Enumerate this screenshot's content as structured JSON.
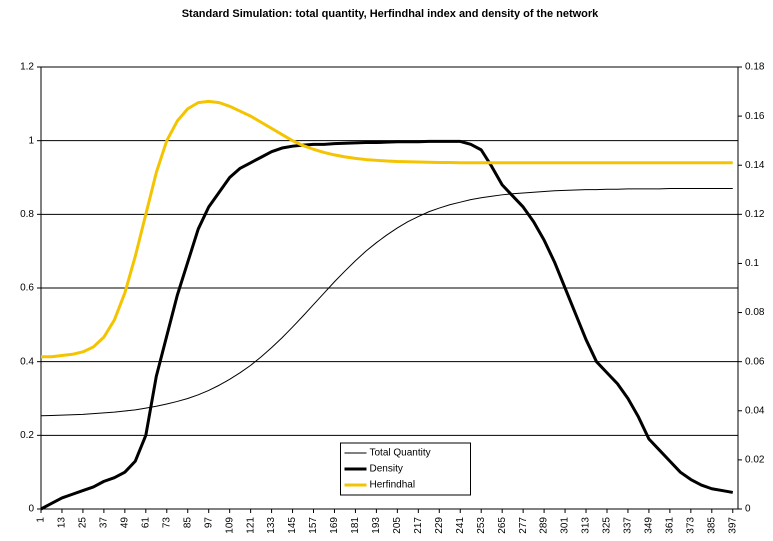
{
  "chart_data": {
    "type": "line",
    "title": "Standard Simulation: total quantity, Herfindhal  index and density of the network",
    "x": [
      1,
      7,
      13,
      19,
      25,
      31,
      37,
      43,
      49,
      55,
      61,
      67,
      73,
      79,
      85,
      91,
      97,
      103,
      109,
      115,
      121,
      127,
      133,
      139,
      145,
      151,
      157,
      163,
      169,
      175,
      181,
      187,
      193,
      199,
      205,
      211,
      217,
      223,
      229,
      235,
      241,
      247,
      253,
      259,
      265,
      271,
      277,
      283,
      289,
      295,
      301,
      307,
      313,
      319,
      325,
      331,
      337,
      343,
      349,
      355,
      361,
      367,
      373,
      379,
      385,
      391,
      397
    ],
    "xlim": [
      1,
      400
    ],
    "xticks": [
      1,
      13,
      25,
      37,
      49,
      61,
      73,
      85,
      97,
      109,
      121,
      133,
      145,
      157,
      169,
      181,
      193,
      205,
      217,
      229,
      241,
      253,
      265,
      277,
      289,
      301,
      313,
      325,
      337,
      349,
      361,
      373,
      385,
      397
    ],
    "ylim": [
      0,
      1.2
    ],
    "yticks": [
      0,
      0.2,
      0.4,
      0.6,
      0.8,
      1,
      1.2
    ],
    "y2lim": [
      0,
      0.18
    ],
    "y2ticks": [
      0,
      0.02,
      0.04,
      0.06,
      0.08,
      0.1,
      0.12,
      0.14,
      0.16,
      0.18
    ],
    "grid": true,
    "legend": "lower center",
    "series": [
      {
        "name": "Total Quantity",
        "color": "#000000",
        "line_width": 1,
        "values": [
          0.253,
          0.254,
          0.255,
          0.256,
          0.257,
          0.259,
          0.261,
          0.263,
          0.266,
          0.269,
          0.274,
          0.279,
          0.285,
          0.292,
          0.3,
          0.31,
          0.322,
          0.336,
          0.352,
          0.37,
          0.39,
          0.413,
          0.438,
          0.465,
          0.494,
          0.524,
          0.555,
          0.586,
          0.617,
          0.646,
          0.674,
          0.7,
          0.723,
          0.744,
          0.763,
          0.78,
          0.794,
          0.807,
          0.817,
          0.826,
          0.833,
          0.84,
          0.845,
          0.849,
          0.853,
          0.856,
          0.858,
          0.86,
          0.862,
          0.864,
          0.865,
          0.866,
          0.867,
          0.867,
          0.868,
          0.868,
          0.869,
          0.869,
          0.869,
          0.869,
          0.87,
          0.87,
          0.87,
          0.87,
          0.87,
          0.87,
          0.87
        ]
      },
      {
        "name": "Density",
        "color": "#000000",
        "line_width": 3,
        "values": [
          0,
          0.015,
          0.03,
          0.04,
          0.05,
          0.06,
          0.075,
          0.085,
          0.1,
          0.13,
          0.2,
          0.36,
          0.47,
          0.58,
          0.67,
          0.76,
          0.82,
          0.86,
          0.9,
          0.925,
          0.94,
          0.955,
          0.97,
          0.98,
          0.985,
          0.988,
          0.99,
          0.99,
          0.992,
          0.993,
          0.994,
          0.995,
          0.995,
          0.996,
          0.997,
          0.997,
          0.997,
          0.998,
          0.998,
          0.998,
          0.998,
          0.99,
          0.975,
          0.93,
          0.88,
          0.85,
          0.82,
          0.78,
          0.73,
          0.67,
          0.6,
          0.53,
          0.46,
          0.4,
          0.37,
          0.34,
          0.3,
          0.25,
          0.19,
          0.16,
          0.13,
          0.1,
          0.08,
          0.065,
          0.055,
          0.05,
          0.045
        ]
      },
      {
        "name": "Herfindhal",
        "color": "#f5c400",
        "line_width": 3,
        "axis": "y2",
        "values": [
          0.062,
          0.062,
          0.0625,
          0.063,
          0.064,
          0.066,
          0.07,
          0.077,
          0.088,
          0.103,
          0.12,
          0.137,
          0.15,
          0.158,
          0.163,
          0.1655,
          0.166,
          0.1655,
          0.164,
          0.162,
          0.16,
          0.1575,
          0.155,
          0.1525,
          0.15,
          0.148,
          0.1465,
          0.1452,
          0.1442,
          0.1434,
          0.1428,
          0.1423,
          0.142,
          0.1417,
          0.1415,
          0.1414,
          0.1413,
          0.1412,
          0.1411,
          0.1411,
          0.141,
          0.141,
          0.141,
          0.141,
          0.141,
          0.141,
          0.141,
          0.141,
          0.141,
          0.141,
          0.141,
          0.141,
          0.141,
          0.141,
          0.141,
          0.141,
          0.141,
          0.141,
          0.141,
          0.141,
          0.141,
          0.141,
          0.141,
          0.141,
          0.141,
          0.141,
          0.141
        ]
      }
    ]
  }
}
